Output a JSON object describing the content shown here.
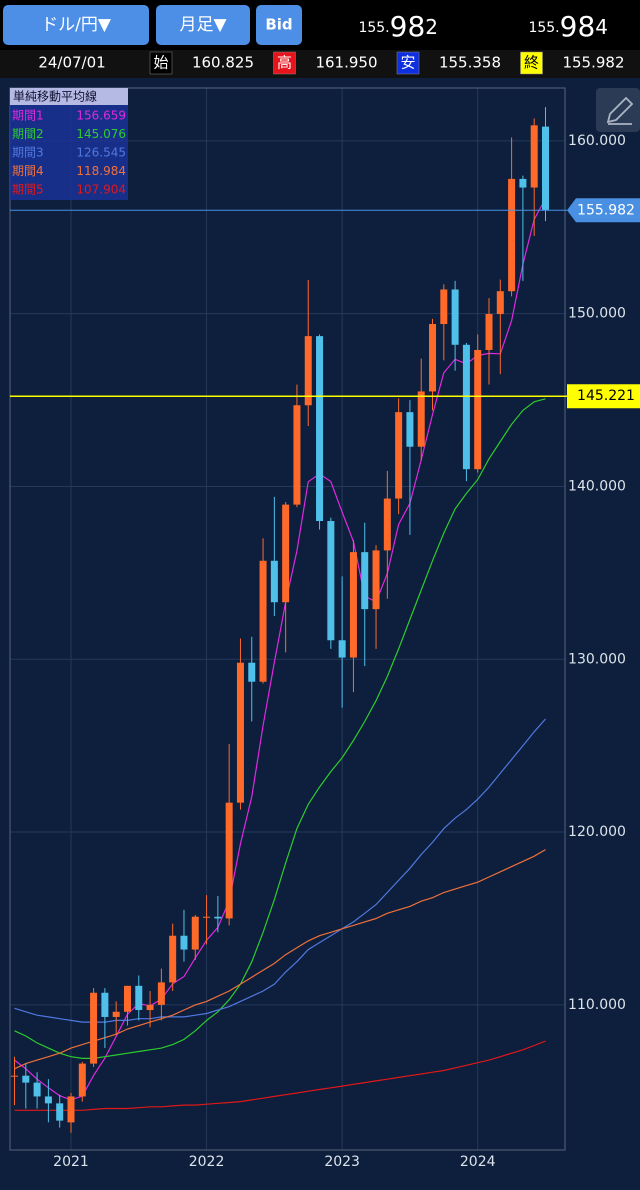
{
  "header": {
    "pair": "ドル/円▼",
    "period": "月足▼",
    "bid_button": "Bid",
    "bid": [
      "155.",
      "98",
      "2"
    ],
    "ask": [
      "155.",
      "98",
      "4"
    ],
    "date": "24/07/01",
    "ohlc": [
      {
        "tag": "始",
        "value": "160.825"
      },
      {
        "tag": "高",
        "value": "161.950"
      },
      {
        "tag": "安",
        "value": "155.358"
      },
      {
        "tag": "終",
        "value": "155.982"
      }
    ]
  },
  "chart_data": {
    "type": "candlestick",
    "categories": [
      null,
      null,
      null,
      null,
      null,
      "2021",
      null,
      null,
      null,
      null,
      null,
      null,
      null,
      null,
      null,
      null,
      null,
      "2022",
      null,
      null,
      null,
      null,
      null,
      null,
      null,
      null,
      null,
      null,
      null,
      "2023",
      null,
      null,
      null,
      null,
      null,
      null,
      null,
      null,
      null,
      null,
      null,
      "2024",
      null,
      null,
      null,
      null,
      null,
      null
    ],
    "candles": {
      "up_color": "#ff6a2a",
      "down_color": "#4fc0ea",
      "open": [
        105.9,
        105.9,
        105.5,
        104.7,
        104.3,
        103.2,
        104.7,
        106.6,
        110.7,
        109.3,
        109.6,
        111.1,
        109.7,
        110.0,
        111.3,
        114.0,
        113.2,
        115.1,
        115.1,
        115.0,
        121.7,
        129.8,
        128.7,
        135.7,
        133.3,
        138.95,
        144.7,
        148.7,
        138.0,
        131.1,
        130.1,
        136.2,
        132.9,
        136.3,
        139.3,
        144.3,
        142.3,
        145.5,
        149.4,
        151.4,
        148.2,
        141.0,
        147.9,
        149.98,
        151.3,
        157.8,
        157.3,
        160.825
      ],
      "high": [
        107.0,
        106.6,
        106.1,
        105.7,
        104.8,
        104.9,
        106.7,
        110.97,
        110.97,
        110.2,
        111.1,
        111.7,
        110.8,
        112.1,
        114.7,
        115.5,
        115.2,
        116.35,
        116.3,
        125.1,
        131.2,
        131.3,
        137.0,
        139.4,
        139.1,
        145.9,
        151.95,
        148.8,
        138.2,
        134.8,
        136.9,
        137.9,
        136.6,
        140.9,
        145.1,
        145.0,
        147.4,
        149.7,
        151.7,
        151.9,
        148.3,
        148.8,
        150.9,
        151.97,
        160.2,
        157.99,
        161.3,
        161.95
      ],
      "low": [
        104.2,
        104.0,
        104.0,
        103.2,
        102.9,
        102.6,
        104.4,
        106.4,
        107.5,
        108.3,
        108.8,
        109.1,
        108.7,
        109.1,
        110.8,
        112.5,
        112.6,
        113.5,
        114.2,
        114.6,
        121.3,
        126.4,
        128.6,
        132.5,
        130.4,
        138.8,
        143.5,
        137.5,
        130.6,
        127.2,
        128.1,
        129.6,
        130.6,
        133.5,
        138.4,
        137.2,
        141.5,
        144.4,
        147.3,
        146.7,
        140.3,
        140.8,
        145.9,
        146.5,
        151.0,
        151.9,
        154.5,
        155.358
      ],
      "close": [
        105.9,
        105.5,
        104.7,
        104.3,
        103.3,
        104.7,
        106.6,
        110.7,
        109.3,
        109.6,
        111.1,
        109.7,
        110.0,
        111.3,
        114.0,
        113.2,
        115.1,
        115.1,
        115.0,
        121.7,
        129.8,
        128.7,
        135.7,
        133.3,
        138.95,
        144.7,
        148.7,
        138.0,
        131.1,
        130.1,
        136.2,
        132.9,
        136.3,
        139.3,
        144.3,
        142.3,
        145.5,
        149.4,
        151.4,
        148.2,
        141.0,
        147.9,
        149.98,
        151.3,
        157.8,
        157.3,
        160.9,
        155.982
      ]
    },
    "legend_title": "単純移動平均線",
    "series": [
      {
        "name": "期間1",
        "color": "#e028e0",
        "values": [
          106.8,
          106.3,
          105.7,
          105.2,
          104.74,
          104.5,
          104.72,
          105.92,
          106.92,
          108.18,
          109.46,
          110.08,
          109.94,
          110.34,
          111.22,
          111.64,
          112.72,
          113.74,
          114.48,
          116.02,
          119.34,
          122.06,
          126.18,
          129.84,
          133.29,
          136.27,
          140.27,
          140.73,
          140.29,
          138.52,
          136.82,
          133.66,
          133.32,
          134.96,
          137.8,
          139.02,
          141.54,
          144.16,
          146.58,
          147.36,
          147.1,
          147.58,
          147.7,
          147.68,
          149.6,
          152.86,
          155.46,
          156.659
        ]
      },
      {
        "name": "期間2",
        "color": "#2ecc2e",
        "values": [
          108.5,
          108.2,
          107.8,
          107.5,
          107.2,
          107.0,
          106.9,
          106.9,
          107.0,
          107.1,
          107.2,
          107.3,
          107.4,
          107.5,
          107.7,
          108.0,
          108.5,
          109.1,
          109.6,
          110.3,
          111.2,
          112.5,
          114.2,
          116.1,
          118.2,
          120.2,
          121.6,
          122.6,
          123.5,
          124.3,
          125.3,
          126.4,
          127.6,
          129.0,
          130.6,
          132.3,
          134.0,
          135.7,
          137.3,
          138.7,
          139.6,
          140.4,
          141.6,
          142.6,
          143.6,
          144.4,
          144.9,
          145.076
        ]
      },
      {
        "name": "期間3",
        "color": "#5078e0",
        "values": [
          109.8,
          109.6,
          109.4,
          109.3,
          109.2,
          109.1,
          109.0,
          109.0,
          109.0,
          109.1,
          109.1,
          109.2,
          109.2,
          109.3,
          109.3,
          109.3,
          109.4,
          109.5,
          109.7,
          109.9,
          110.2,
          110.5,
          110.8,
          111.2,
          111.9,
          112.5,
          113.2,
          113.6,
          114.0,
          114.4,
          114.8,
          115.3,
          115.8,
          116.5,
          117.2,
          117.9,
          118.7,
          119.4,
          120.2,
          120.8,
          121.3,
          121.9,
          122.6,
          123.4,
          124.2,
          125.0,
          125.8,
          126.545
        ]
      },
      {
        "name": "期間4",
        "color": "#f0703a",
        "values": [
          106.3,
          106.6,
          106.8,
          107.0,
          107.2,
          107.5,
          107.7,
          107.9,
          108.1,
          108.3,
          108.6,
          108.8,
          109.0,
          109.2,
          109.4,
          109.7,
          110.0,
          110.2,
          110.5,
          110.8,
          111.2,
          111.6,
          112.0,
          112.4,
          112.9,
          113.3,
          113.7,
          114.0,
          114.2,
          114.4,
          114.6,
          114.8,
          115.0,
          115.3,
          115.5,
          115.7,
          116.0,
          116.2,
          116.5,
          116.7,
          116.9,
          117.1,
          117.4,
          117.7,
          118.0,
          118.3,
          118.6,
          118.984
        ]
      },
      {
        "name": "期間5",
        "color": "#e01818",
        "values": [
          103.9,
          103.9,
          103.9,
          103.9,
          103.9,
          103.9,
          103.9,
          103.95,
          104.0,
          104.0,
          104.0,
          104.05,
          104.1,
          104.1,
          104.15,
          104.2,
          104.2,
          104.25,
          104.3,
          104.35,
          104.4,
          104.5,
          104.6,
          104.7,
          104.8,
          104.9,
          105.0,
          105.1,
          105.2,
          105.3,
          105.4,
          105.5,
          105.6,
          105.7,
          105.8,
          105.9,
          106.0,
          106.1,
          106.2,
          106.35,
          106.5,
          106.65,
          106.8,
          107.0,
          107.2,
          107.4,
          107.65,
          107.904
        ]
      }
    ],
    "hlines": [
      {
        "value": 155.982,
        "color": "#4a90e2"
      },
      {
        "value": 145.221,
        "color": "#ffff00"
      }
    ],
    "ylim": [
      101.6,
      163.06
    ],
    "yticks": [
      {
        "value": 110,
        "label": "110.000"
      },
      {
        "value": 120,
        "label": "120.000"
      },
      {
        "value": 130,
        "label": "130.000"
      },
      {
        "value": 140,
        "label": "140.000"
      },
      {
        "value": 150,
        "label": "150.000"
      },
      {
        "value": 160,
        "label": "160.000"
      }
    ],
    "grid": true
  }
}
